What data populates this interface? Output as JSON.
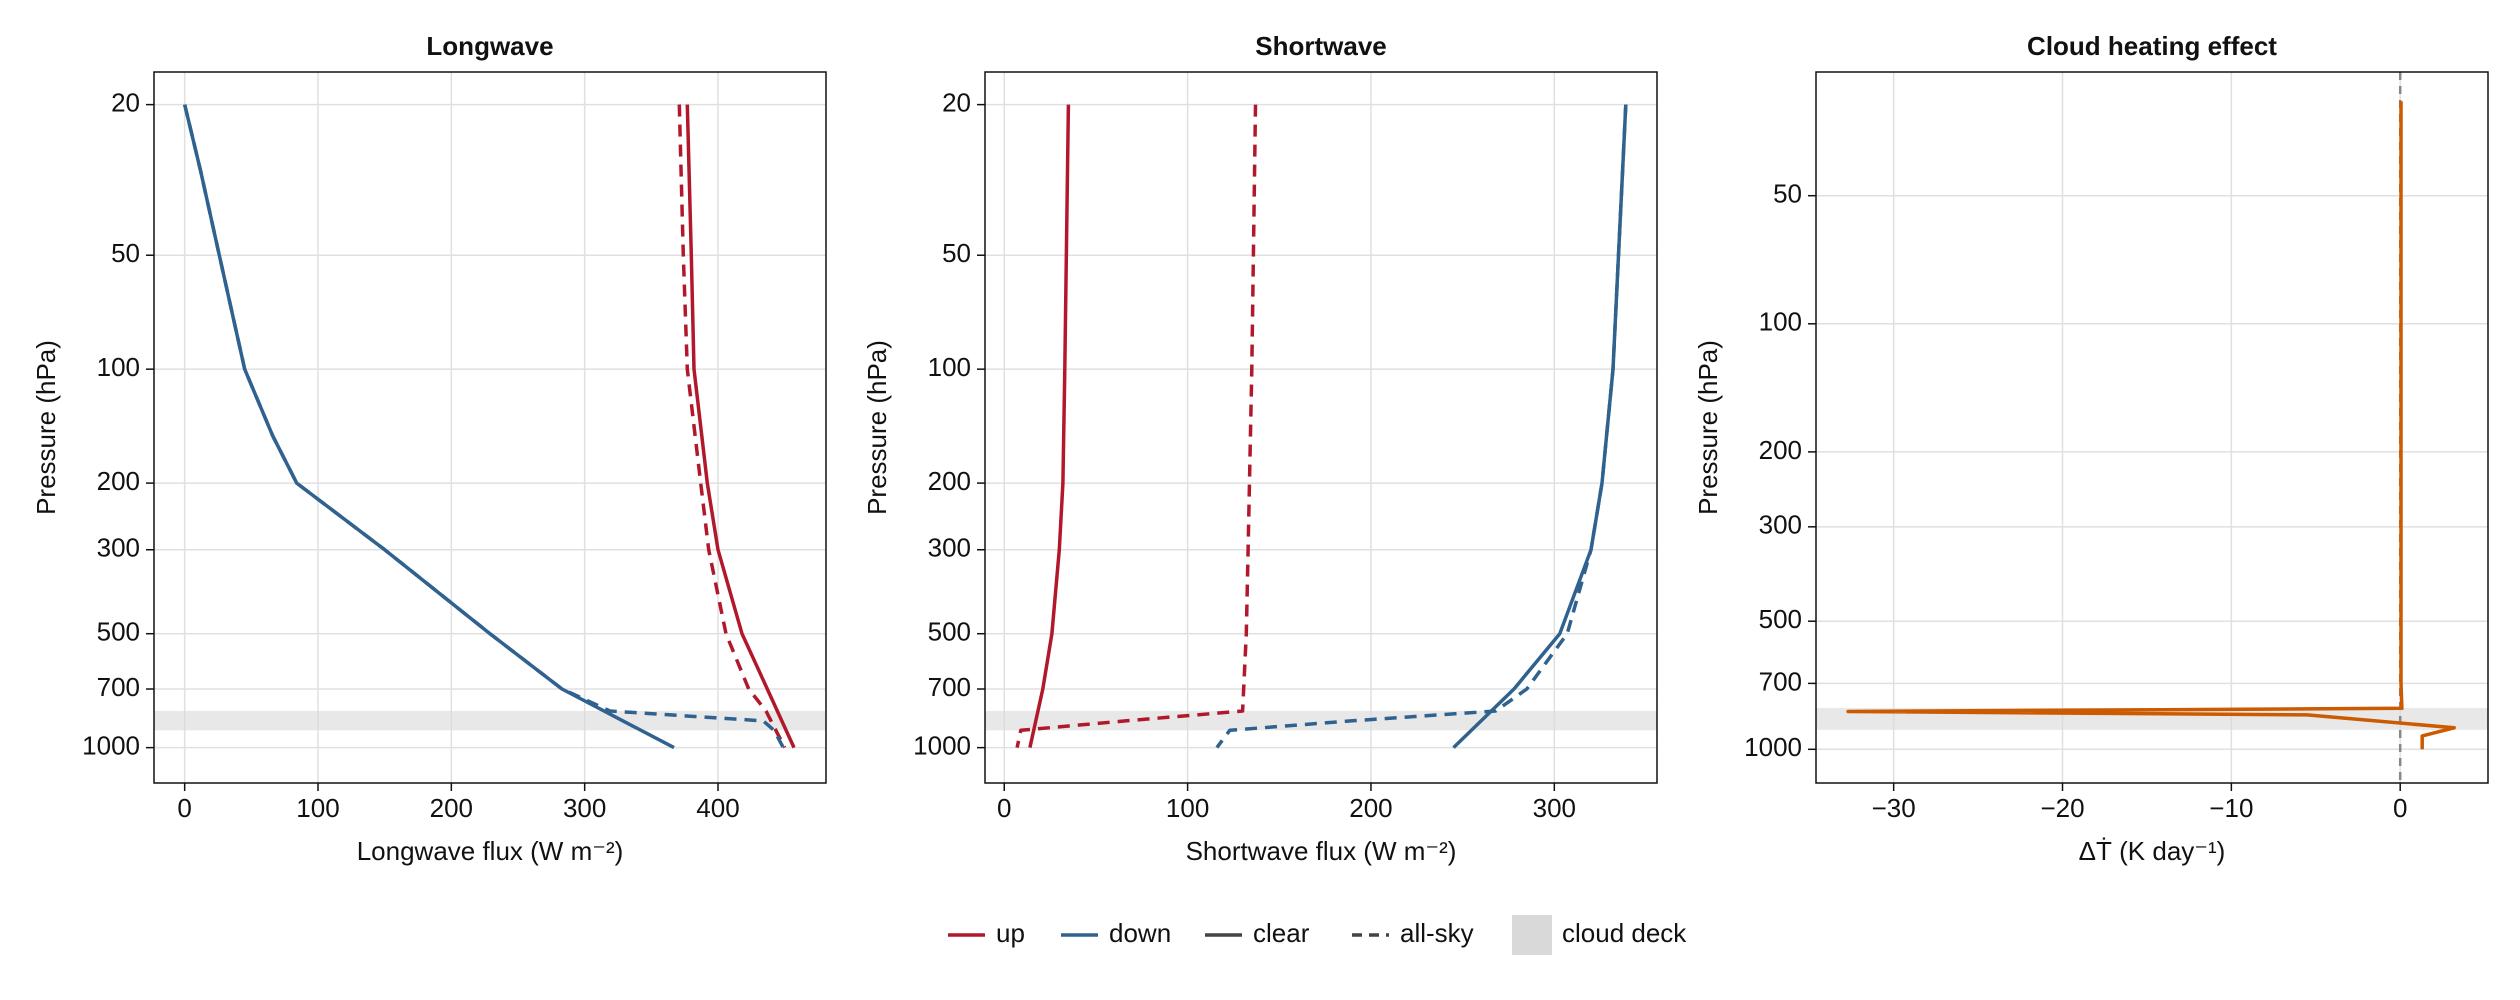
{
  "chart_data": [
    {
      "type": "line",
      "title": "Longwave",
      "xlabel": "Longwave flux (W m⁻²)",
      "ylabel": "Pressure (hPa)",
      "xlim": [
        -23,
        481
      ],
      "xticks": [
        0,
        100,
        200,
        300,
        400
      ],
      "ylim": [
        1240,
        16.4
      ],
      "ylog": true,
      "yticks": [
        20,
        50,
        100,
        200,
        300,
        500,
        700,
        1000
      ],
      "grid": true,
      "cloud_deck": [
        800,
        900
      ],
      "series": [
        {
          "color": "#b2182b",
          "dashed": false,
          "x": [
            377,
            380,
            382,
            392,
            400,
            418,
            437,
            457
          ],
          "y": [
            20,
            50,
            100,
            200,
            300,
            500,
            700,
            1000
          ]
        },
        {
          "color": "#b2182b",
          "dashed": true,
          "x": [
            371,
            374,
            377,
            387,
            393,
            406,
            423,
            436,
            450
          ],
          "y": [
            20,
            50,
            100,
            200,
            300,
            500,
            700,
            800,
            1000
          ]
        },
        {
          "color": "#30628f",
          "dashed": false,
          "x": [
            0,
            12,
            26,
            45,
            66,
            84,
            150,
            229,
            283,
            367
          ],
          "y": [
            20,
            30,
            50,
            100,
            150,
            200,
            300,
            500,
            700,
            1000
          ]
        },
        {
          "color": "#30628f",
          "dashed": true,
          "x": [
            0,
            12,
            26,
            45,
            66,
            84,
            150,
            229,
            283,
            319,
            434,
            442,
            449
          ],
          "y": [
            20,
            30,
            50,
            100,
            150,
            200,
            300,
            500,
            700,
            800,
            850,
            900,
            1000
          ]
        }
      ]
    },
    {
      "type": "line",
      "title": "Shortwave",
      "xlabel": "Shortwave flux (W m⁻²)",
      "ylabel": "Pressure (hPa)",
      "xlim": [
        -10.5,
        356
      ],
      "xticks": [
        0,
        100,
        200,
        300
      ],
      "ylim": [
        1240,
        16.4
      ],
      "ylog": true,
      "yticks": [
        20,
        50,
        100,
        200,
        300,
        500,
        700,
        1000
      ],
      "grid": true,
      "cloud_deck": [
        800,
        900
      ],
      "series": [
        {
          "color": "#b2182b",
          "dashed": false,
          "x": [
            35,
            33,
            32,
            30,
            26,
            21,
            14
          ],
          "y": [
            20,
            100,
            200,
            300,
            500,
            700,
            1000
          ]
        },
        {
          "color": "#b2182b",
          "dashed": true,
          "x": [
            137,
            135,
            133,
            132,
            130,
            66,
            9,
            7
          ],
          "y": [
            20,
            100,
            300,
            500,
            800,
            850,
            900,
            1000
          ]
        },
        {
          "color": "#30628f",
          "dashed": false,
          "x": [
            339,
            335,
            332,
            326,
            320,
            303,
            278,
            245
          ],
          "y": [
            20,
            50,
            100,
            200,
            300,
            500,
            700,
            1000
          ]
        },
        {
          "color": "#30628f",
          "dashed": true,
          "x": [
            339,
            335,
            332,
            326,
            320,
            307,
            285,
            268,
            189,
            123,
            116
          ],
          "y": [
            20,
            50,
            100,
            200,
            300,
            500,
            700,
            800,
            850,
            900,
            1000
          ]
        }
      ]
    },
    {
      "type": "line",
      "title": "Cloud heating effect",
      "xlabel": "ΔṪ (K day⁻¹)",
      "ylabel": "Pressure (hPa)",
      "xlim": [
        -34.6,
        5.2
      ],
      "xticks": [
        {
          "value": -30,
          "label": "−30"
        },
        {
          "value": -20,
          "label": "−20"
        },
        {
          "value": -10,
          "label": "−10"
        },
        0
      ],
      "ylim": [
        1200,
        25.6
      ],
      "ylog": true,
      "yticks": [
        50,
        100,
        200,
        300,
        500,
        700,
        1000
      ],
      "grid": true,
      "cloud_deck": [
        800,
        900
      ],
      "vline": 0,
      "series": [
        {
          "color": "#cc5a00",
          "dashed": false,
          "x": [
            0.05,
            0.05,
            0.05,
            0.05,
            0.1,
            -32.7,
            -5.5,
            3.2,
            1.3,
            1.3
          ],
          "y": [
            30,
            100,
            300,
            700,
            801,
            815,
            830,
            890,
            930,
            1000
          ]
        }
      ]
    }
  ],
  "legend": [
    {
      "label": "up",
      "color": "#b2182b",
      "style": "solid"
    },
    {
      "label": "down",
      "color": "#30628f",
      "style": "solid"
    },
    {
      "label": "clear",
      "color": "#444444",
      "style": "solid"
    },
    {
      "label": "all-sky",
      "color": "#444444",
      "style": "dashed"
    },
    {
      "label": "cloud deck",
      "color": "#d9d9d9",
      "style": "patch"
    }
  ]
}
